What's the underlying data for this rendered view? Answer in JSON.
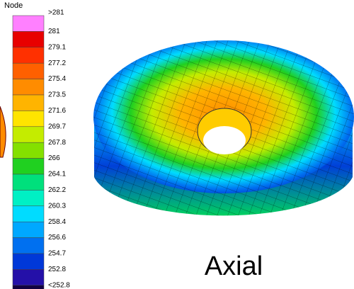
{
  "legend": {
    "title": "Node",
    "items": [
      {
        "label": ">281",
        "color": "#ff80ff"
      },
      {
        "label": "281",
        "color": "#e80000"
      },
      {
        "label": "279.1",
        "color": "#ff3000"
      },
      {
        "label": "277.2",
        "color": "#ff6000"
      },
      {
        "label": "275.4",
        "color": "#ff8c00"
      },
      {
        "label": "273.5",
        "color": "#ffb400"
      },
      {
        "label": "271.6",
        "color": "#ffe400"
      },
      {
        "label": "269.7",
        "color": "#c4ec00"
      },
      {
        "label": "267.8",
        "color": "#84e000"
      },
      {
        "label": "266",
        "color": "#20d020"
      },
      {
        "label": "264.1",
        "color": "#00e07c"
      },
      {
        "label": "262.2",
        "color": "#00f0c4"
      },
      {
        "label": "260.3",
        "color": "#00dcff"
      },
      {
        "label": "258.4",
        "color": "#00a8ff"
      },
      {
        "label": "256.6",
        "color": "#0070f0"
      },
      {
        "label": "254.7",
        "color": "#0038d8"
      },
      {
        "label": "252.8",
        "color": "#2410a8"
      },
      {
        "label": "<252.8",
        "color": "#120040"
      }
    ]
  },
  "caption": "Axial"
}
